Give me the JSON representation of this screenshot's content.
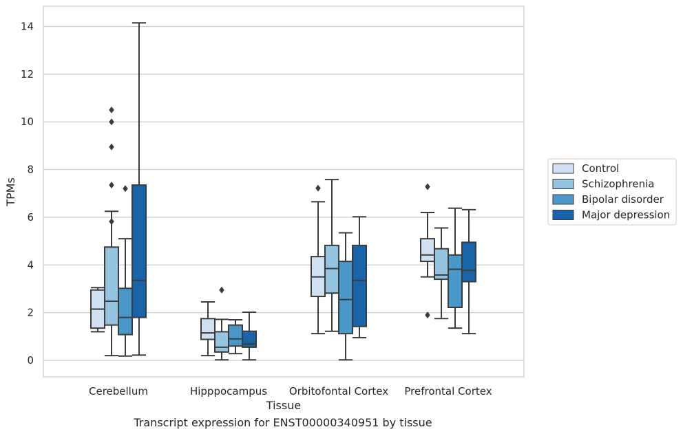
{
  "caption": "Transcript expression for ENST00000340951 by tissue",
  "chart_data": {
    "type": "boxplot",
    "xlabel": "Tissue",
    "ylabel": "TPMs",
    "ylim": [
      -0.7,
      14.8
    ],
    "yticks": [
      0,
      2,
      4,
      6,
      8,
      10,
      12,
      14
    ],
    "grid": "horizontal",
    "legend_position": "right",
    "categories": [
      "Cerebellum",
      "Hipppocampus",
      "Orbitofontal Cortex",
      "Prefrontal Cortex"
    ],
    "series": [
      {
        "name": "Control",
        "color": "#d0e1f2",
        "boxes": [
          {
            "whisker_low": 1.2,
            "q1": 1.35,
            "median": 2.15,
            "q3": 2.95,
            "whisker_high": 3.05,
            "outliers": []
          },
          {
            "whisker_low": 0.2,
            "q1": 0.88,
            "median": 1.15,
            "q3": 1.75,
            "whisker_high": 2.45,
            "outliers": []
          },
          {
            "whisker_low": 1.12,
            "q1": 2.68,
            "median": 3.5,
            "q3": 4.35,
            "whisker_high": 6.65,
            "outliers": [
              7.22
            ]
          },
          {
            "whisker_low": 3.5,
            "q1": 4.15,
            "median": 4.42,
            "q3": 5.1,
            "whisker_high": 6.2,
            "outliers": [
              7.28,
              1.9
            ]
          }
        ]
      },
      {
        "name": "Schizophrenia",
        "color": "#94c4df",
        "boxes": [
          {
            "whisker_low": 0.2,
            "q1": 1.48,
            "median": 2.48,
            "q3": 4.75,
            "whisker_high": 6.25,
            "outliers": [
              8.95,
              7.35,
              5.82,
              10.0,
              10.5
            ]
          },
          {
            "whisker_low": 0.02,
            "q1": 0.35,
            "median": 0.55,
            "q3": 1.2,
            "whisker_high": 1.72,
            "outliers": [
              2.95
            ]
          },
          {
            "whisker_low": 1.22,
            "q1": 2.82,
            "median": 3.85,
            "q3": 4.82,
            "whisker_high": 7.58,
            "outliers": []
          },
          {
            "whisker_low": 1.75,
            "q1": 3.4,
            "median": 3.58,
            "q3": 4.68,
            "whisker_high": 5.55,
            "outliers": []
          }
        ]
      },
      {
        "name": "Bipolar disorder",
        "color": "#4a98c9",
        "boxes": [
          {
            "whisker_low": 0.18,
            "q1": 1.08,
            "median": 1.8,
            "q3": 3.02,
            "whisker_high": 5.1,
            "outliers": [
              7.2
            ]
          },
          {
            "whisker_low": 0.28,
            "q1": 0.6,
            "median": 0.9,
            "q3": 1.48,
            "whisker_high": 1.7,
            "outliers": []
          },
          {
            "whisker_low": 0.02,
            "q1": 1.12,
            "median": 2.55,
            "q3": 4.15,
            "whisker_high": 5.35,
            "outliers": []
          },
          {
            "whisker_low": 1.35,
            "q1": 2.22,
            "median": 3.82,
            "q3": 4.42,
            "whisker_high": 6.38,
            "outliers": []
          }
        ]
      },
      {
        "name": "Major depression",
        "color": "#1764ab",
        "boxes": [
          {
            "whisker_low": 0.22,
            "q1": 1.8,
            "median": 3.35,
            "q3": 7.35,
            "whisker_high": 14.15,
            "outliers": []
          },
          {
            "whisker_low": 0.02,
            "q1": 0.55,
            "median": 0.68,
            "q3": 1.22,
            "whisker_high": 2.02,
            "outliers": []
          },
          {
            "whisker_low": 0.95,
            "q1": 1.42,
            "median": 3.35,
            "q3": 4.82,
            "whisker_high": 6.02,
            "outliers": []
          },
          {
            "whisker_low": 1.12,
            "q1": 3.3,
            "median": 3.78,
            "q3": 4.95,
            "whisker_high": 6.32,
            "outliers": []
          }
        ]
      }
    ]
  }
}
